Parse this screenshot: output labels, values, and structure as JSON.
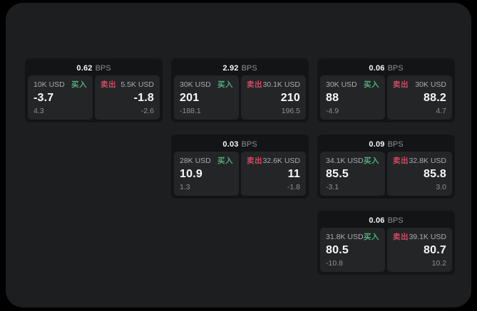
{
  "labels": {
    "bps_unit": "BPS",
    "buy": "买入",
    "sell": "卖出"
  },
  "colors": {
    "background": "#000000",
    "window": "#1d1e1f",
    "card": "#131415",
    "subcard": "#242527",
    "buy_accent": "#4fae7d",
    "sell_accent": "#cf4a66",
    "primary_text": "#fafafa",
    "muted_text": "#8e9093"
  },
  "cards": [
    {
      "bps": "0.62",
      "buy": {
        "amount": "10K USD",
        "price": "-3.7",
        "delta": "4.3"
      },
      "sell": {
        "amount": "5.5K USD",
        "price": "-1.8",
        "delta": "-2.6"
      }
    },
    {
      "bps": "2.92",
      "buy": {
        "amount": "30K USD",
        "price": "201",
        "delta": "-188.1"
      },
      "sell": {
        "amount": "30.1K USD",
        "price": "210",
        "delta": "196.5"
      }
    },
    {
      "bps": "0.06",
      "buy": {
        "amount": "30K USD",
        "price": "88",
        "delta": "-4.9"
      },
      "sell": {
        "amount": "30K USD",
        "price": "88.2",
        "delta": "4.7"
      }
    },
    {
      "bps": "0.03",
      "buy": {
        "amount": "28K USD",
        "price": "10.9",
        "delta": "1.3"
      },
      "sell": {
        "amount": "32.6K USD",
        "price": "11",
        "delta": "-1.8"
      }
    },
    {
      "bps": "0.09",
      "buy": {
        "amount": "34.1K USD",
        "price": "85.5",
        "delta": "-3.1"
      },
      "sell": {
        "amount": "32.8K USD",
        "price": "85.8",
        "delta": "3.0"
      }
    },
    {
      "bps": "0.06",
      "buy": {
        "amount": "31.8K USD",
        "price": "80.5",
        "delta": "-10.8"
      },
      "sell": {
        "amount": "39.1K USD",
        "price": "80.7",
        "delta": "10.2"
      }
    }
  ]
}
